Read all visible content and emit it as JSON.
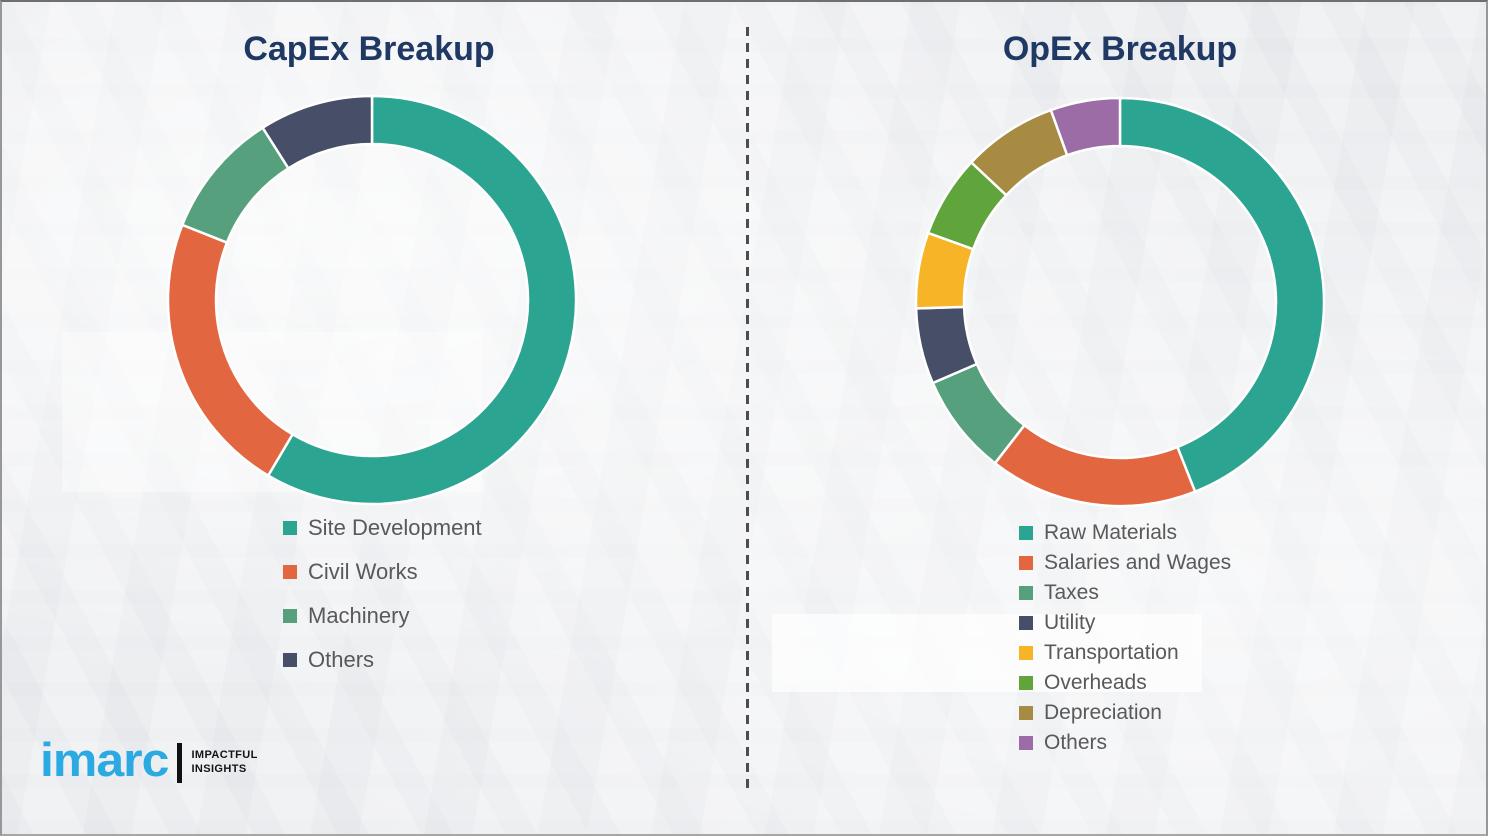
{
  "chart_data": [
    {
      "type": "donut",
      "title": "CapEx Breakup",
      "labels": [
        "Site Development",
        "Civil Works",
        "Machinery",
        "Others"
      ],
      "values": [
        58.5,
        22.5,
        10,
        9
      ],
      "colors": [
        "#2ba492",
        "#e2663f",
        "#57a07d",
        "#474f68"
      ],
      "legend_position": "below",
      "start_angle_deg": 0,
      "direction": "clockwise"
    },
    {
      "type": "donut",
      "title": "OpEx Breakup",
      "labels": [
        "Raw Materials",
        "Salaries and Wages",
        "Taxes",
        "Utility",
        "Transportation",
        "Overheads",
        "Depreciation",
        "Others"
      ],
      "values": [
        44,
        16.5,
        8,
        6,
        6,
        6.5,
        7.5,
        5.5
      ],
      "colors": [
        "#2ba492",
        "#e2663f",
        "#57a07d",
        "#474f68",
        "#f6b426",
        "#60a43c",
        "#a78b42",
        "#9c6ca6"
      ],
      "legend_position": "below",
      "start_angle_deg": 0,
      "direction": "clockwise"
    }
  ],
  "titles": {
    "capex": "CapEx Breakup",
    "opex": "OpEx Breakup"
  },
  "logo": {
    "brand": "imarc",
    "tagline_line1": "IMPACTFUL",
    "tagline_line2": "INSIGHTS",
    "brand_color": "#2ba9e2"
  },
  "colors": {
    "title": "#1f3864",
    "legend_text": "#595959",
    "divider": "#4d4d4d"
  }
}
